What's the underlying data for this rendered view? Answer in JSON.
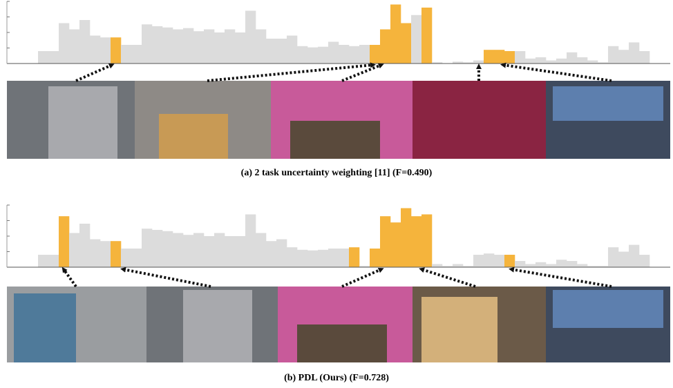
{
  "chart_data": [
    {
      "type": "bar",
      "caption": "(a) 2 task uncertainty weighting [11] (F=0.490)",
      "ylim": [
        0,
        1
      ],
      "yticks": [
        0.25,
        0.5,
        0.75,
        1
      ],
      "values": [
        0,
        0.2,
        0.2,
        0.65,
        0.55,
        0.7,
        0.45,
        0.42,
        0.42,
        0.3,
        0.3,
        0.63,
        0.6,
        0.58,
        0.55,
        0.57,
        0.52,
        0.55,
        0.5,
        0.55,
        0.5,
        0.85,
        0.55,
        0.4,
        0.4,
        0.45,
        0.28,
        0.26,
        0.27,
        0.35,
        0.3,
        0.28,
        0.3,
        0.3,
        0.55,
        0.95,
        0.65,
        0.78,
        0.9,
        0.02,
        0,
        0.03,
        0.02,
        0.05,
        0.22,
        0.22,
        0.2,
        0.2,
        0.08,
        0.1,
        0.05,
        0.08,
        0.18,
        0.1,
        0.05,
        0.02,
        0.28,
        0.22,
        0.34,
        0.2
      ],
      "colors": [
        "#dcdcdc",
        "#dcdcdc",
        "#dcdcdc",
        "#dcdcdc",
        "#dcdcdc",
        "#dcdcdc",
        "#dcdcdc",
        "#dcdcdc",
        "#f5b43c",
        "#dcdcdc",
        "#dcdcdc",
        "#dcdcdc",
        "#dcdcdc",
        "#dcdcdc",
        "#dcdcdc",
        "#dcdcdc",
        "#dcdcdc",
        "#dcdcdc",
        "#dcdcdc",
        "#dcdcdc",
        "#dcdcdc",
        "#dcdcdc",
        "#dcdcdc",
        "#dcdcdc",
        "#dcdcdc",
        "#dcdcdc",
        "#dcdcdc",
        "#dcdcdc",
        "#dcdcdc",
        "#dcdcdc",
        "#dcdcdc",
        "#dcdcdc",
        "#dcdcdc",
        "#f5b43c",
        "#f5b43c",
        "#f5b43c",
        "#f5b43c",
        "#dcdcdc",
        "#f5b43c",
        "#dcdcdc",
        "#dcdcdc",
        "#dcdcdc",
        "#dcdcdc",
        "#dcdcdc",
        "#f5b43c",
        "#f5b43c",
        "#f5b43c",
        "#dcdcdc",
        "#dcdcdc",
        "#dcdcdc",
        "#dcdcdc",
        "#dcdcdc",
        "#dcdcdc",
        "#dcdcdc",
        "#dcdcdc",
        "#dcdcdc",
        "#dcdcdc",
        "#dcdcdc",
        "#dcdcdc",
        "#dcdcdc"
      ]
    },
    {
      "type": "bar",
      "caption": "(b) PDL (Ours) (F=0.728)",
      "ylim": [
        0,
        1
      ],
      "yticks": [
        0.25,
        0.5,
        0.75,
        1
      ],
      "values": [
        0,
        0.2,
        0.2,
        0.82,
        0.55,
        0.7,
        0.45,
        0.42,
        0.42,
        0.3,
        0.3,
        0.62,
        0.6,
        0.58,
        0.55,
        0.52,
        0.55,
        0.5,
        0.55,
        0.5,
        0.5,
        0.85,
        0.55,
        0.42,
        0.45,
        0.32,
        0.28,
        0.27,
        0.28,
        0.3,
        0.3,
        0.32,
        0.02,
        0.3,
        0.82,
        0.72,
        0.95,
        0.82,
        0.85,
        0.05,
        0.02,
        0.05,
        0.02,
        0.2,
        0.22,
        0.2,
        0.2,
        0.1,
        0.05,
        0.08,
        0.05,
        0.12,
        0.1,
        0.05,
        0.02,
        0.02,
        0.32,
        0.25,
        0.36,
        0.2
      ],
      "colors": [
        "#dcdcdc",
        "#dcdcdc",
        "#dcdcdc",
        "#f5b43c",
        "#dcdcdc",
        "#dcdcdc",
        "#dcdcdc",
        "#dcdcdc",
        "#f5b43c",
        "#dcdcdc",
        "#dcdcdc",
        "#dcdcdc",
        "#dcdcdc",
        "#dcdcdc",
        "#dcdcdc",
        "#dcdcdc",
        "#dcdcdc",
        "#dcdcdc",
        "#dcdcdc",
        "#dcdcdc",
        "#dcdcdc",
        "#dcdcdc",
        "#dcdcdc",
        "#dcdcdc",
        "#dcdcdc",
        "#dcdcdc",
        "#dcdcdc",
        "#dcdcdc",
        "#dcdcdc",
        "#dcdcdc",
        "#dcdcdc",
        "#f5b43c",
        "#dcdcdc",
        "#f5b43c",
        "#f5b43c",
        "#f5b43c",
        "#f5b43c",
        "#f5b43c",
        "#f5b43c",
        "#dcdcdc",
        "#dcdcdc",
        "#dcdcdc",
        "#dcdcdc",
        "#dcdcdc",
        "#dcdcdc",
        "#dcdcdc",
        "#f5b43c",
        "#dcdcdc",
        "#dcdcdc",
        "#dcdcdc",
        "#dcdcdc",
        "#dcdcdc",
        "#dcdcdc",
        "#dcdcdc",
        "#dcdcdc",
        "#dcdcdc",
        "#dcdcdc",
        "#dcdcdc",
        "#dcdcdc",
        "#dcdcdc"
      ]
    }
  ]
}
